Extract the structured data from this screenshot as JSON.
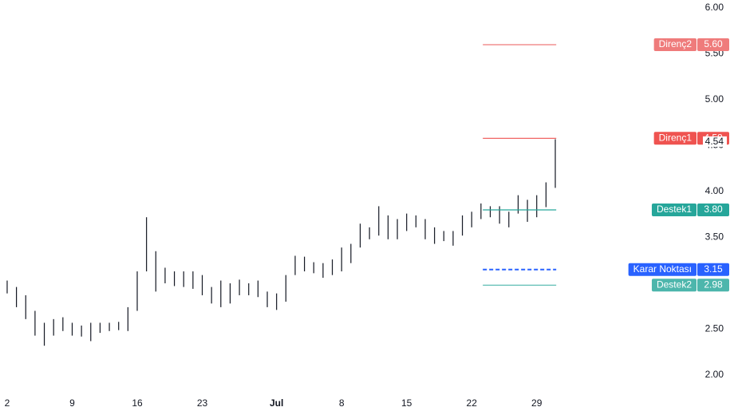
{
  "chart_data": {
    "type": "ohlc-range",
    "x": [
      0,
      1,
      2,
      3,
      4,
      5,
      6,
      7,
      8,
      9,
      10,
      11,
      12,
      13,
      14,
      15,
      16,
      17,
      18,
      19,
      20,
      21,
      22,
      23,
      24,
      25,
      26,
      27,
      28,
      29,
      30,
      31,
      32,
      33,
      34,
      35,
      36,
      37,
      38,
      39,
      40,
      41,
      42,
      43,
      44,
      45,
      46,
      47,
      48,
      49,
      50,
      51,
      52,
      53,
      54,
      55,
      56,
      57,
      58,
      59
    ],
    "high": [
      3.03,
      2.96,
      2.87,
      2.7,
      2.57,
      2.61,
      2.63,
      2.57,
      2.54,
      2.57,
      2.57,
      2.57,
      2.58,
      2.74,
      3.13,
      3.72,
      3.35,
      3.17,
      3.13,
      3.13,
      3.13,
      3.09,
      2.96,
      3.03,
      3.0,
      3.04,
      3.0,
      3.03,
      2.91,
      2.89,
      3.09,
      3.3,
      3.29,
      3.23,
      3.22,
      3.26,
      3.39,
      3.43,
      3.65,
      3.61,
      3.84,
      3.74,
      3.7,
      3.76,
      3.74,
      3.7,
      3.61,
      3.57,
      3.57,
      3.74,
      3.78,
      3.87,
      3.84,
      3.84,
      3.78,
      3.96,
      3.91,
      3.96,
      4.1,
      4.57
    ],
    "low": [
      2.89,
      2.74,
      2.61,
      2.43,
      2.32,
      2.43,
      2.48,
      2.43,
      2.42,
      2.37,
      2.46,
      2.48,
      2.49,
      2.48,
      2.7,
      3.13,
      2.91,
      3.0,
      2.97,
      2.96,
      2.94,
      2.87,
      2.78,
      2.74,
      2.78,
      2.87,
      2.87,
      2.85,
      2.74,
      2.71,
      2.8,
      3.09,
      3.13,
      3.11,
      3.06,
      3.09,
      3.13,
      3.22,
      3.39,
      3.48,
      3.52,
      3.48,
      3.48,
      3.57,
      3.61,
      3.48,
      3.43,
      3.46,
      3.41,
      3.52,
      3.61,
      3.7,
      3.72,
      3.65,
      3.61,
      3.76,
      3.67,
      3.72,
      3.83,
      4.04
    ],
    "color": "#131722",
    "xlim": [
      -0.77,
      74.8
    ],
    "xticks": [
      {
        "value": 0,
        "label": "2"
      },
      {
        "value": 7,
        "label": "9"
      },
      {
        "value": 14,
        "label": "16"
      },
      {
        "value": 21,
        "label": "23"
      },
      {
        "value": 29,
        "label": "Jul"
      },
      {
        "value": 36,
        "label": "8"
      },
      {
        "value": 43,
        "label": "15"
      },
      {
        "value": 50,
        "label": "22"
      },
      {
        "value": 57,
        "label": "29"
      }
    ],
    "ylim": [
      1.913,
      6.087
    ],
    "yticks": [
      {
        "value": 2,
        "label": "2.00"
      },
      {
        "value": 2.5,
        "label": "2.50"
      },
      {
        "value": 3.5,
        "label": "3.50"
      },
      {
        "value": 4,
        "label": "4.00"
      },
      {
        "value": 4.5,
        "label": "4.50"
      },
      {
        "value": 5,
        "label": "5.00"
      },
      {
        "value": 5.5,
        "label": "5.50"
      },
      {
        "value": 6,
        "label": "6.00"
      }
    ],
    "levels": [
      {
        "name": "Direnç2",
        "value": 5.6,
        "value_label": "5.60",
        "color": "#ef7b7b",
        "dashed": false
      },
      {
        "name": "Direnç1",
        "value": 4.58,
        "value_label": "4.58",
        "color": "#ef5350",
        "dashed": false
      },
      {
        "name": "Destek1",
        "value": 3.8,
        "value_label": "3.80",
        "color": "#26a69a",
        "dashed": false
      },
      {
        "name": "Karar Noktası",
        "value": 3.15,
        "value_label": "3.15",
        "color": "#2962ff",
        "dashed": true
      },
      {
        "name": "Destek2",
        "value": 2.98,
        "value_label": "2.98",
        "color": "#4db6ac",
        "dashed": false
      }
    ],
    "level_xrange": [
      51.2,
      59.1
    ],
    "last_price": 4.54,
    "last_price_label": "4.54"
  }
}
